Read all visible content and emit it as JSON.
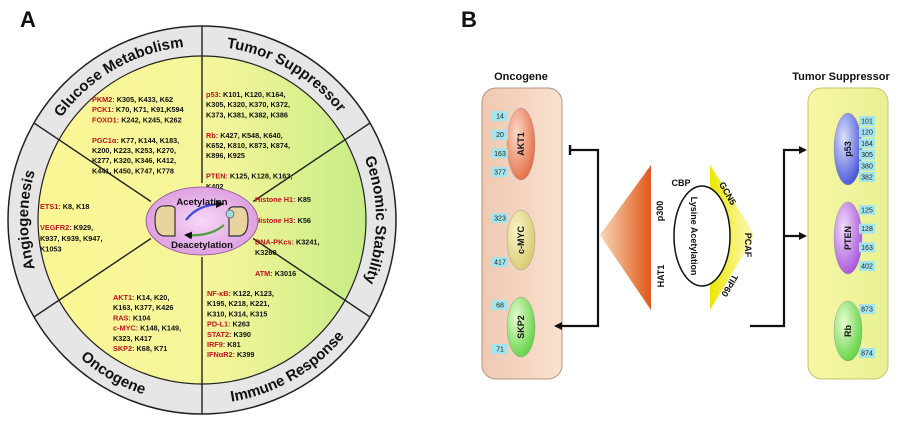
{
  "panel_a": {
    "letter": "A",
    "sections": [
      {
        "title": "Glucose Metabolism",
        "entries": [
          {
            "name": "PKM2:",
            "sites": " K305, K433, K62"
          },
          {
            "name": "PCK1:",
            "sites": " K70, K71, K91,K594"
          },
          {
            "name": "FOXO1:",
            "sites": " K242, K245, K262"
          },
          {
            "name": "",
            "sites": ""
          },
          {
            "name": "PGC1α:",
            "sites": " K77, K144, K183,"
          },
          {
            "name": "",
            "sites": "K200, K223, K253, K270,"
          },
          {
            "name": "",
            "sites": "K277, K320, K346, K412,"
          },
          {
            "name": "",
            "sites": "K441, K450, K747, K778"
          }
        ]
      },
      {
        "title": "Tumor Suppressor",
        "entries": [
          {
            "name": "p53:",
            "sites": " K101, K120, K164,"
          },
          {
            "name": "",
            "sites": "K305, K320, K370, K372,"
          },
          {
            "name": "",
            "sites": "K373, K381, K382, K386"
          },
          {
            "name": "",
            "sites": ""
          },
          {
            "name": "Rb:",
            "sites": " K427, K548, K640,"
          },
          {
            "name": "",
            "sites": "K652, K810, K873, K874,"
          },
          {
            "name": "",
            "sites": "K896, K925"
          },
          {
            "name": "",
            "sites": ""
          },
          {
            "name": "PTEN:",
            "sites": " K125, K128, K163,"
          },
          {
            "name": "",
            "sites": "K402"
          }
        ]
      },
      {
        "title": "Genomic Stability",
        "entries": [
          {
            "name": "Histone H1:",
            "sites": " K85"
          },
          {
            "name": "",
            "sites": ""
          },
          {
            "name": "Histone H3:",
            "sites": " K56"
          },
          {
            "name": "",
            "sites": ""
          },
          {
            "name": "DNA-PKcs:",
            "sites": " K3241,"
          },
          {
            "name": "",
            "sites": "K3260"
          },
          {
            "name": "",
            "sites": ""
          },
          {
            "name": "ATM:",
            "sites": " K3016"
          }
        ]
      },
      {
        "title": "Immune Response",
        "entries": [
          {
            "name": "NF-κB:",
            "sites": " K122, K123,"
          },
          {
            "name": "",
            "sites": "K195, K218, K221,"
          },
          {
            "name": "",
            "sites": "K310, K314, K315"
          },
          {
            "name": "PD-L1:",
            "sites": " K263"
          },
          {
            "name": "STAT2:",
            "sites": " K390"
          },
          {
            "name": "IRF9:",
            "sites": " K81"
          },
          {
            "name": "IFNαR2:",
            "sites": " K399"
          }
        ]
      },
      {
        "title": "Oncogene",
        "entries": [
          {
            "name": "AKT1:",
            "sites": " K14, K20,"
          },
          {
            "name": "",
            "sites": "K163, K377, K426"
          },
          {
            "name": "RAS:",
            "sites": " K104"
          },
          {
            "name": "c-MYC:",
            "sites": " K148, K149,"
          },
          {
            "name": "",
            "sites": "K323, K417"
          },
          {
            "name": "SKP2:",
            "sites": " K68, K71"
          }
        ]
      },
      {
        "title": "Angiogenesis",
        "entries": [
          {
            "name": "ETS1:",
            "sites": " K8, K18"
          },
          {
            "name": "",
            "sites": ""
          },
          {
            "name": "VEGFR2:",
            "sites": " K929,"
          },
          {
            "name": "",
            "sites": "K937, K939, K947,"
          },
          {
            "name": "",
            "sites": "K1053"
          }
        ]
      }
    ],
    "center": {
      "top": "Acetylation",
      "bottom": "Deacetylation"
    }
  },
  "panel_b": {
    "letter": "B",
    "oncogene": {
      "title": "Oncogene",
      "genes": [
        {
          "name": "AKT1",
          "sites": [
            "14",
            "20",
            "163",
            "377"
          ]
        },
        {
          "name": "c-MYC",
          "sites": [
            "323",
            "417"
          ]
        },
        {
          "name": "SKP2",
          "sites": [
            "68",
            "71"
          ]
        }
      ]
    },
    "suppressor": {
      "title": "Tumor Suppressor",
      "genes": [
        {
          "name": "p53",
          "sites": [
            "101",
            "120",
            "164",
            "305",
            "380",
            "382"
          ]
        },
        {
          "name": "PTEN",
          "sites": [
            "125",
            "128",
            "163",
            "402"
          ]
        },
        {
          "name": "Rb",
          "sites": [
            "873",
            "874"
          ]
        }
      ]
    },
    "center_label": "Lysine Acetylation",
    "enzymes": [
      "CBP",
      "GCN5",
      "PCAF",
      "TIP60",
      "HAT1",
      "p300"
    ]
  },
  "colors": {
    "red_name": "#c0141c",
    "ring": "#e4e4e4",
    "yellow": "#f8f59a",
    "green": "#d0ef8c",
    "center": "#e5b1e6",
    "site_box": "#a3e5ec"
  }
}
